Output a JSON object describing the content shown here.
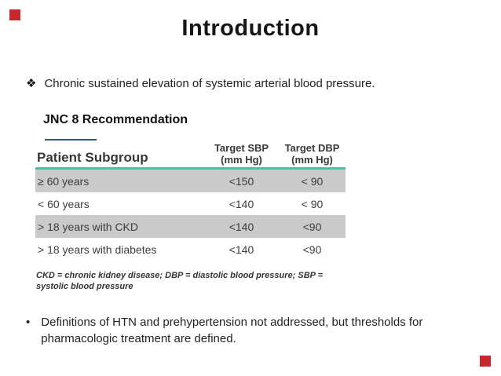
{
  "slide": {
    "title": "Introduction",
    "intro_bullet": {
      "marker": "❖",
      "text": "Chronic sustained elevation of systemic arterial blood pressure."
    },
    "section_heading": "JNC 8 Recommendation",
    "closing_bullet": {
      "marker": "•",
      "text": "Definitions of HTN and prehypertension not addressed, but thresholds for pharmacologic treatment are defined."
    }
  },
  "chart_data": {
    "type": "table",
    "title": "JNC 8 Recommendation",
    "columns": [
      {
        "line1": "Patient Subgroup",
        "line2": ""
      },
      {
        "line1": "Target SBP",
        "line2": "(mm Hg)"
      },
      {
        "line1": "Target DBP",
        "line2": "(mm Hg)"
      }
    ],
    "rows": [
      {
        "cells": [
          "≥ 60 years",
          "<150",
          "< 90"
        ],
        "shaded": true
      },
      {
        "cells": [
          "< 60 years",
          "<140",
          "< 90"
        ],
        "shaded": false
      },
      {
        "cells": [
          "> 18 years with CKD",
          "<140",
          "<90"
        ],
        "shaded": true
      },
      {
        "cells": [
          "> 18 years with diabetes",
          "<140",
          "<90"
        ],
        "shaded": false
      }
    ],
    "footnote": "CKD = chronic kidney disease; DBP = diastolic blood pressure; SBP = systolic blood pressure"
  },
  "colors": {
    "accent_red": "#c9252c",
    "table_rule_teal": "#4fbfa0",
    "heading_underline_blue": "#33567d",
    "row_shade_gray": "#cacaca"
  }
}
